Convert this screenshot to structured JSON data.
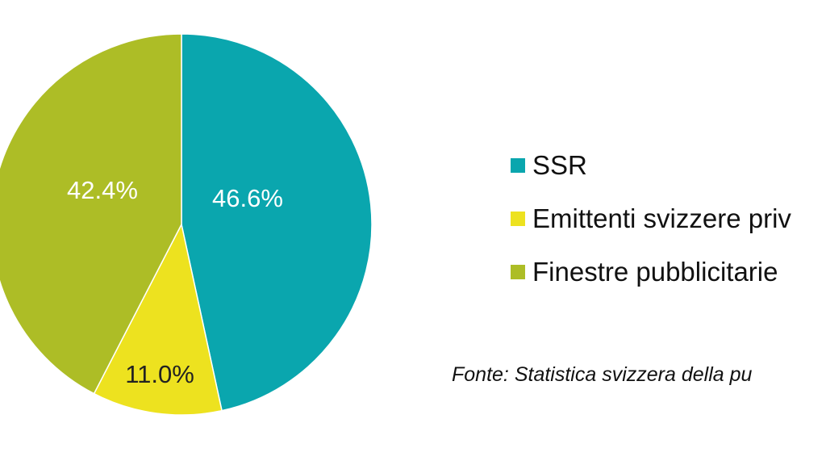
{
  "chart_data": {
    "type": "pie",
    "start": "top",
    "direction": "clockwise",
    "slices": [
      {
        "name": "SSR",
        "value": 46.6,
        "label": "46.6%",
        "color": "#0aa6ae",
        "label_color": "#ffffff"
      },
      {
        "name": "Emittenti svizzere priv",
        "value": 11.0,
        "label": "11.0%",
        "color": "#ede21f",
        "label_color": "#222222"
      },
      {
        "name": "Finestre pubblicitarie",
        "value": 42.4,
        "label": "42.4%",
        "color": "#adbd26",
        "label_color": "#ffffff"
      }
    ],
    "legend_position": "right",
    "source": "Fonte: Statistica svizzera della pu"
  }
}
